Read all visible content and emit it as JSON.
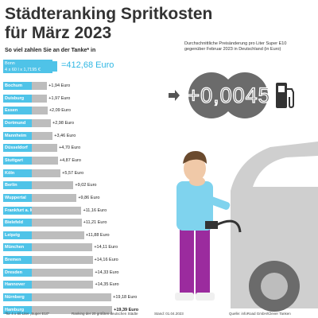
{
  "header": {
    "title_line1": "Städteranking Spritkosten",
    "title_line2": "für März 2023",
    "subtitle": "So viel zahlen Sie an der Tanke* in"
  },
  "bonn": {
    "city": "Bonn",
    "formula": "4 x 60 l x 1,7195 €",
    "value": "=412,68 Euro"
  },
  "chart_data": {
    "type": "bar",
    "orientation": "horizontal",
    "unit": "Euro",
    "base_city": "Bonn",
    "base_value": 412.68,
    "categories": [
      "Bochum",
      "Duisburg",
      "Essen",
      "Dortmund",
      "Mannheim",
      "Düsseldorf",
      "Stuttgart",
      "Köln",
      "Berlin",
      "Wuppertal",
      "Frankfurt a. M.",
      "Bielefeld",
      "Leipzig",
      "München",
      "Bremen",
      "Dresden",
      "Hannover",
      "Nürnberg",
      "Hamburg"
    ],
    "values": [
      1.94,
      1.97,
      2.09,
      2.98,
      3.46,
      4.7,
      4.87,
      5.57,
      9.02,
      9.86,
      11.16,
      11.21,
      11.88,
      14.11,
      14.16,
      14.33,
      14.35,
      19.18,
      19.39
    ],
    "labels": [
      "+1,94 Euro",
      "+1,97 Euro",
      "+2,09 Euro",
      "+2,98 Euro",
      "+3,46 Euro",
      "+4,70 Euro",
      "+4,87 Euro",
      "+5,57 Euro",
      "+9,02 Euro",
      "+9,86 Euro",
      "+11,16 Euro",
      "+11,21 Euro",
      "+11,88 Euro",
      "+14,11 Euro",
      "+14,16 Euro",
      "+14,33 Euro",
      "+14,35 Euro",
      "+19,18 Euro",
      "+19,39 Euro"
    ],
    "highlight": "Hamburg",
    "colors": {
      "city": "#4fc3e8",
      "bar": "#bdbdbd",
      "accent": "#2fb7e3"
    }
  },
  "price_change": {
    "description": "Durchschnittliche Preisänderung pro Liter Super E10 gegenüber Februar 2023 in Deutschland (in Euro)",
    "value": "+0,0045"
  },
  "footer": {
    "note": "*für 4 x 60 Liter „Super E10“",
    "ranking": "Ranking der 20 größten deutschen Städte",
    "date": "Stand: 01.04.2023",
    "source": "Quelle: infoRoad GmbH/Clever Tanken"
  },
  "icons": [
    "fuel-pump-icon",
    "arrow-right-icon"
  ]
}
